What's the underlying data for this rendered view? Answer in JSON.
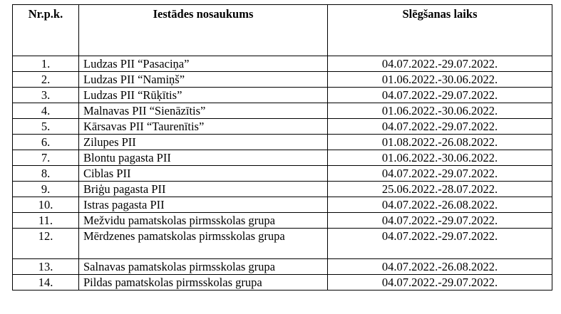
{
  "table": {
    "headers": {
      "number": "Nr.p.k.",
      "name": "Iestādes nosaukums",
      "closing_time": "Slēgšanas laiks"
    },
    "rows": [
      {
        "number": "1.",
        "name": "Ludzas PII “Pasaciņa”",
        "closing_time": "04.07.2022.-29.07.2022."
      },
      {
        "number": "2.",
        "name": "Ludzas PII “Namiņš”",
        "closing_time": "01.06.2022.-30.06.2022."
      },
      {
        "number": "3.",
        "name": "Ludzas PII “Rūķītis”",
        "closing_time": "04.07.2022.-29.07.2022."
      },
      {
        "number": "4.",
        "name": "Malnavas PII “Sienāzītis”",
        "closing_time": "01.06.2022.-30.06.2022."
      },
      {
        "number": "5.",
        "name": "Kārsavas PII “Taurenītis”",
        "closing_time": "04.07.2022.-29.07.2022."
      },
      {
        "number": "6.",
        "name": "Zilupes PII",
        "closing_time": "01.08.2022.-26.08.2022."
      },
      {
        "number": "7.",
        "name": "Blontu pagasta PII",
        "closing_time": "01.06.2022.-30.06.2022."
      },
      {
        "number": "8.",
        "name": "Ciblas PII",
        "closing_time": "04.07.2022.-29.07.2022."
      },
      {
        "number": "9.",
        "name": "Briģu pagasta PII",
        "closing_time": "25.06.2022.-28.07.2022."
      },
      {
        "number": "10.",
        "name": "Istras pagasta PII",
        "closing_time": "04.07.2022.-26.08.2022."
      },
      {
        "number": "11.",
        "name": "Mežvidu pamatskolas pirmsskolas grupa",
        "closing_time": "04.07.2022.-29.07.2022."
      },
      {
        "number": "12.",
        "name": "Mērdzenes pamatskolas pirmsskolas grupa",
        "closing_time": "04.07.2022.-29.07.2022."
      },
      {
        "number": "13.",
        "name": "Salnavas pamatskolas pirmsskolas grupa",
        "closing_time": "04.07.2022.-26.08.2022."
      },
      {
        "number": "14.",
        "name": "Pildas pamatskolas pirmsskolas grupa",
        "closing_time": "04.07.2022.-29.07.2022."
      }
    ]
  }
}
